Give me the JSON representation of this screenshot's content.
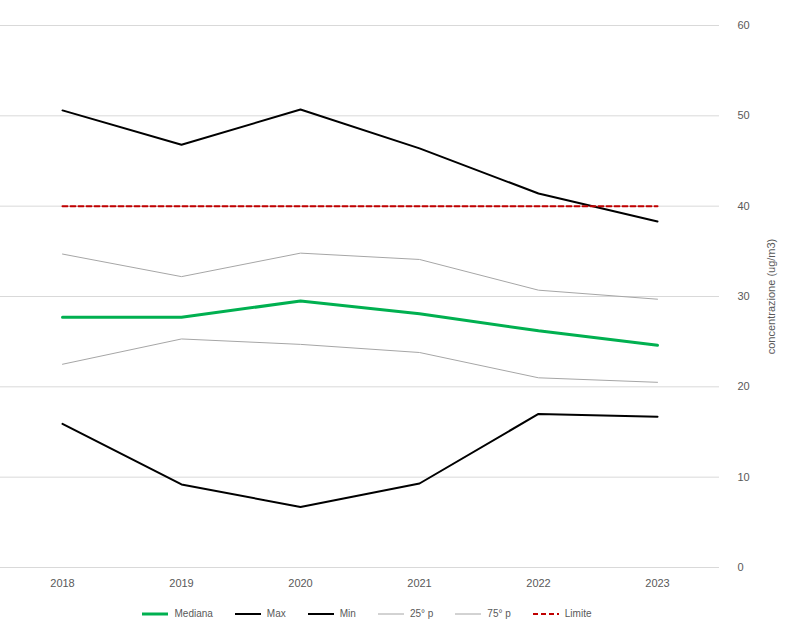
{
  "chart_data": {
    "type": "line",
    "categories": [
      "2018",
      "2019",
      "2020",
      "2021",
      "2022",
      "2023"
    ],
    "y_label": "concentrazione (ug/m3)",
    "ylim": [
      0,
      60
    ],
    "yticks": [
      0,
      10,
      20,
      30,
      40,
      50,
      60
    ],
    "grid": true,
    "legend": "bottom",
    "series": [
      {
        "name": "Mediana",
        "color": "#00b050",
        "line_style": "solid",
        "values": [
          27.7,
          27.7,
          29.5,
          28.1,
          26.2,
          24.6
        ]
      },
      {
        "name": "Max",
        "color": "#000000",
        "line_style": "solid",
        "values": [
          50.6,
          46.8,
          50.7,
          46.4,
          41.4,
          38.3
        ]
      },
      {
        "name": "Min",
        "color": "#000000",
        "line_style": "solid",
        "values": [
          15.9,
          9.2,
          6.7,
          9.3,
          17.0,
          16.7
        ]
      },
      {
        "name": "25° p",
        "color": "#a6a6a6",
        "line_style": "solid",
        "values": [
          22.5,
          25.3,
          24.7,
          23.8,
          21.0,
          20.5
        ]
      },
      {
        "name": "75° p",
        "color": "#a6a6a6",
        "line_style": "solid",
        "values": [
          34.7,
          32.2,
          34.8,
          34.1,
          30.7,
          29.7
        ]
      },
      {
        "name": "Limite",
        "color": "#c00000",
        "line_style": "dashed",
        "values": [
          40,
          40,
          40,
          40,
          40,
          40
        ]
      }
    ]
  }
}
